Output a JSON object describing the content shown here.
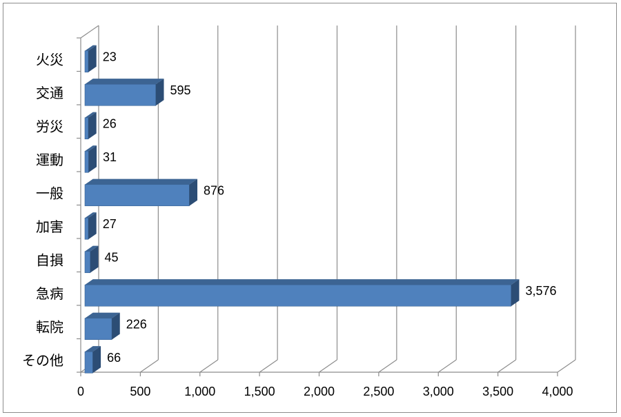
{
  "chart_data": {
    "type": "bar",
    "orientation": "horizontal",
    "style": "3d",
    "categories": [
      "火災",
      "交通",
      "労災",
      "運動",
      "一般",
      "加害",
      "自損",
      "急病",
      "転院",
      "その他"
    ],
    "values": [
      23,
      595,
      26,
      31,
      876,
      27,
      45,
      3576,
      226,
      66
    ],
    "data_labels": [
      "23",
      "595",
      "26",
      "31",
      "876",
      "27",
      "45",
      "3,576",
      "226",
      "66"
    ],
    "x_ticks": [
      "0",
      "500",
      "1,000",
      "1,500",
      "2,000",
      "2,500",
      "3,000",
      "3,500",
      "4,000"
    ],
    "xlim": [
      0,
      4000
    ],
    "grid": true,
    "legend": "none",
    "colors": {
      "bar_front": "#4f81bd",
      "bar_top": "#3c6493",
      "bar_side": "#2c4d75",
      "grid": "#8c8c8c"
    }
  }
}
